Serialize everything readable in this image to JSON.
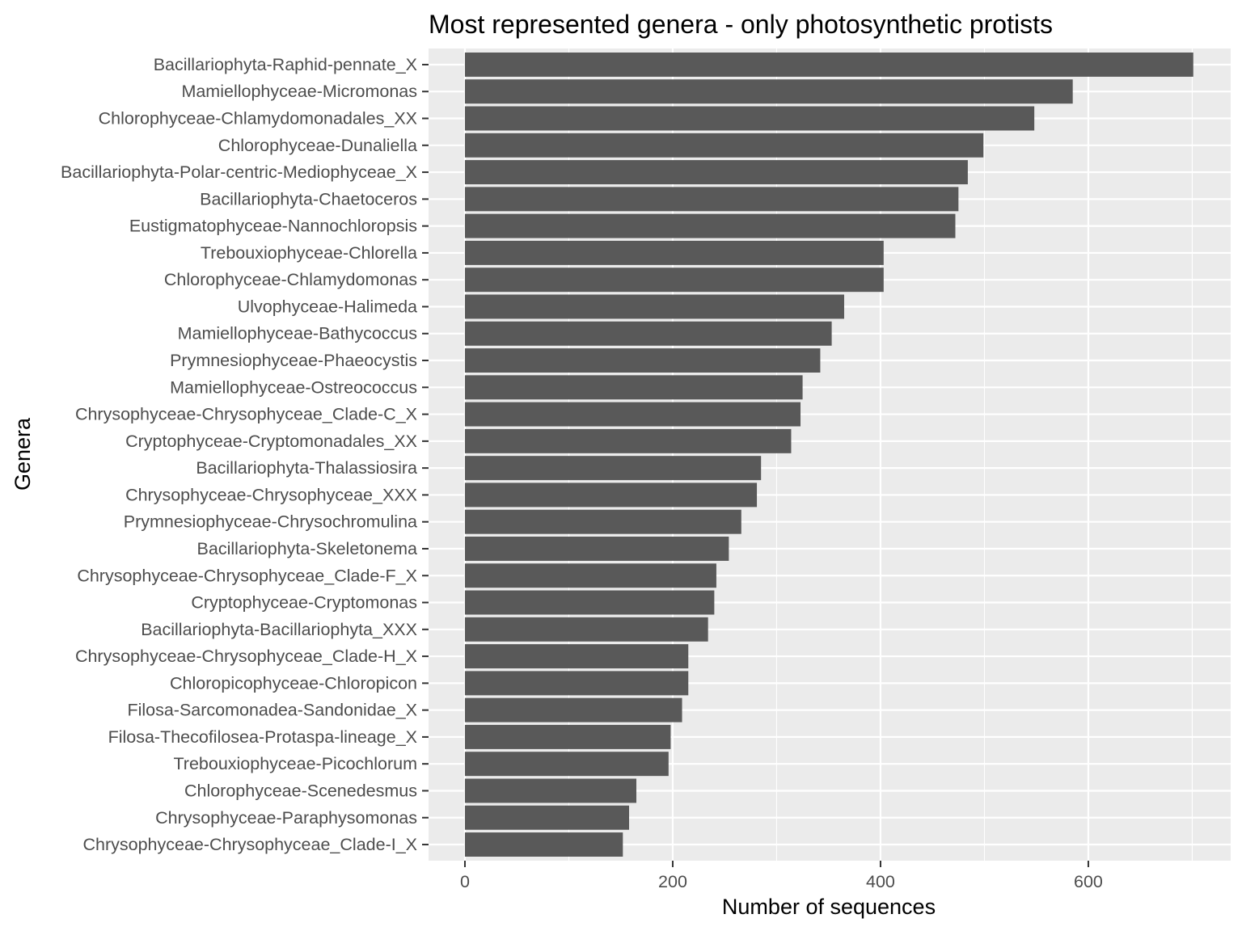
{
  "chart_data": {
    "type": "bar",
    "orientation": "horizontal",
    "title": "Most represented genera - only photosynthetic protists",
    "xlabel": "Number of sequences",
    "ylabel": "Genera",
    "xlim": [
      -35,
      737
    ],
    "x_ticks": [
      0,
      200,
      400,
      600
    ],
    "x_tick_labels": [
      "0",
      "200",
      "400",
      "600"
    ],
    "grid": true,
    "legend": "none",
    "categories": [
      "Bacillariophyta-Raphid-pennate_X",
      "Mamiellophyceae-Micromonas",
      "Chlorophyceae-Chlamydomonadales_XX",
      "Chlorophyceae-Dunaliella",
      "Bacillariophyta-Polar-centric-Mediophyceae_X",
      "Bacillariophyta-Chaetoceros",
      "Eustigmatophyceae-Nannochloropsis",
      "Trebouxiophyceae-Chlorella",
      "Chlorophyceae-Chlamydomonas",
      "Ulvophyceae-Halimeda",
      "Mamiellophyceae-Bathycoccus",
      "Prymnesiophyceae-Phaeocystis",
      "Mamiellophyceae-Ostreococcus",
      "Chrysophyceae-Chrysophyceae_Clade-C_X",
      "Cryptophyceae-Cryptomonadales_XX",
      "Bacillariophyta-Thalassiosira",
      "Chrysophyceae-Chrysophyceae_XXX",
      "Prymnesiophyceae-Chrysochromulina",
      "Bacillariophyta-Skeletonema",
      "Chrysophyceae-Chrysophyceae_Clade-F_X",
      "Cryptophyceae-Cryptomonas",
      "Bacillariophyta-Bacillariophyta_XXX",
      "Chrysophyceae-Chrysophyceae_Clade-H_X",
      "Chloropicophyceae-Chloropicon",
      "Filosa-Sarcomonadea-Sandonidae_X",
      "Filosa-Thecofilosea-Protaspa-lineage_X",
      "Trebouxiophyceae-Picochlorum",
      "Chlorophyceae-Scenedesmus",
      "Chrysophyceae-Paraphysomonas",
      "Chrysophyceae-Chrysophyceae_Clade-I_X"
    ],
    "values": [
      701,
      585,
      548,
      499,
      484,
      475,
      472,
      403,
      403,
      365,
      353,
      342,
      325,
      323,
      314,
      285,
      281,
      266,
      254,
      242,
      240,
      234,
      215,
      215,
      209,
      198,
      196,
      165,
      158,
      152
    ],
    "colors": {
      "bar": "#595959",
      "panel": "#ebebeb",
      "grid_major": "#ffffff",
      "tick_label": "#4d4d4d",
      "tick_mark": "#333333",
      "text": "#000000"
    }
  }
}
